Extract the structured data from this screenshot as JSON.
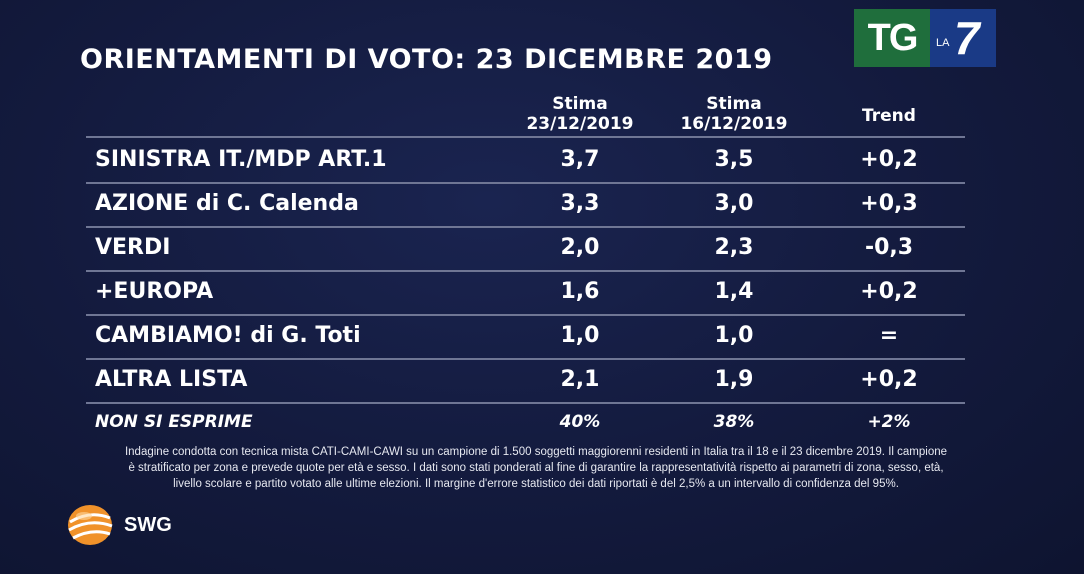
{
  "title": "ORIENTAMENTI DI VOTO: 23 DICEMBRE 2019",
  "logo": {
    "tg": "TG",
    "la": "LA",
    "seven": "7"
  },
  "columns": {
    "c1_line1": "Stima",
    "c1_line2": "23/12/2019",
    "c2_line1": "Stima",
    "c2_line2": "16/12/2019",
    "c3": "Trend"
  },
  "chart_data": {
    "type": "table",
    "title": "ORIENTAMENTI DI VOTO: 23 DICEMBRE 2019",
    "columns": [
      "Stima 23/12/2019",
      "Stima 16/12/2019",
      "Trend"
    ],
    "rows": [
      {
        "party": "SINISTRA IT./MDP ART.1",
        "stima_23": "3,7",
        "stima_16": "3,5",
        "trend": "+0,2"
      },
      {
        "party": "AZIONE di C. Calenda",
        "stima_23": "3,3",
        "stima_16": "3,0",
        "trend": "+0,3"
      },
      {
        "party": "VERDI",
        "stima_23": "2,0",
        "stima_16": "2,3",
        "trend": "-0,3"
      },
      {
        "party": "+EUROPA",
        "stima_23": "1,6",
        "stima_16": "1,4",
        "trend": "+0,2"
      },
      {
        "party": "CAMBIAMO! di G. Toti",
        "stima_23": "1,0",
        "stima_16": "1,0",
        "trend": "="
      },
      {
        "party": "ALTRA LISTA",
        "stima_23": "2,1",
        "stima_16": "1,9",
        "trend": "+0,2"
      },
      {
        "party": "NON SI ESPRIME",
        "stima_23": "40%",
        "stima_16": "38%",
        "trend": "+2%"
      }
    ]
  },
  "footnote": {
    "line1": "Indagine condotta con tecnica mista CATI-CAMI-CAWI su un campione di 1.500 soggetti maggiorenni residenti in Italia tra il 18 e il 23 dicembre 2019. Il campione",
    "line2": "è stratificato per zona e prevede quote per età e sesso. I dati sono stati ponderati al fine di garantire la rappresentatività rispetto ai parametri di zona, sesso, età,",
    "line3": "livello scolare e partito votato alle ultime elezioni. Il margine d'errore statistico dei dati riportati è del 2,5% a un intervallo di confidenza del 95%."
  },
  "source_brand": "SWG",
  "colors": {
    "background": "#131a3d",
    "rule": "#6f7694",
    "tg_green": "#1f6e3c",
    "la7_blue": "#1a3a86",
    "swg_orange": "#f0922a"
  }
}
